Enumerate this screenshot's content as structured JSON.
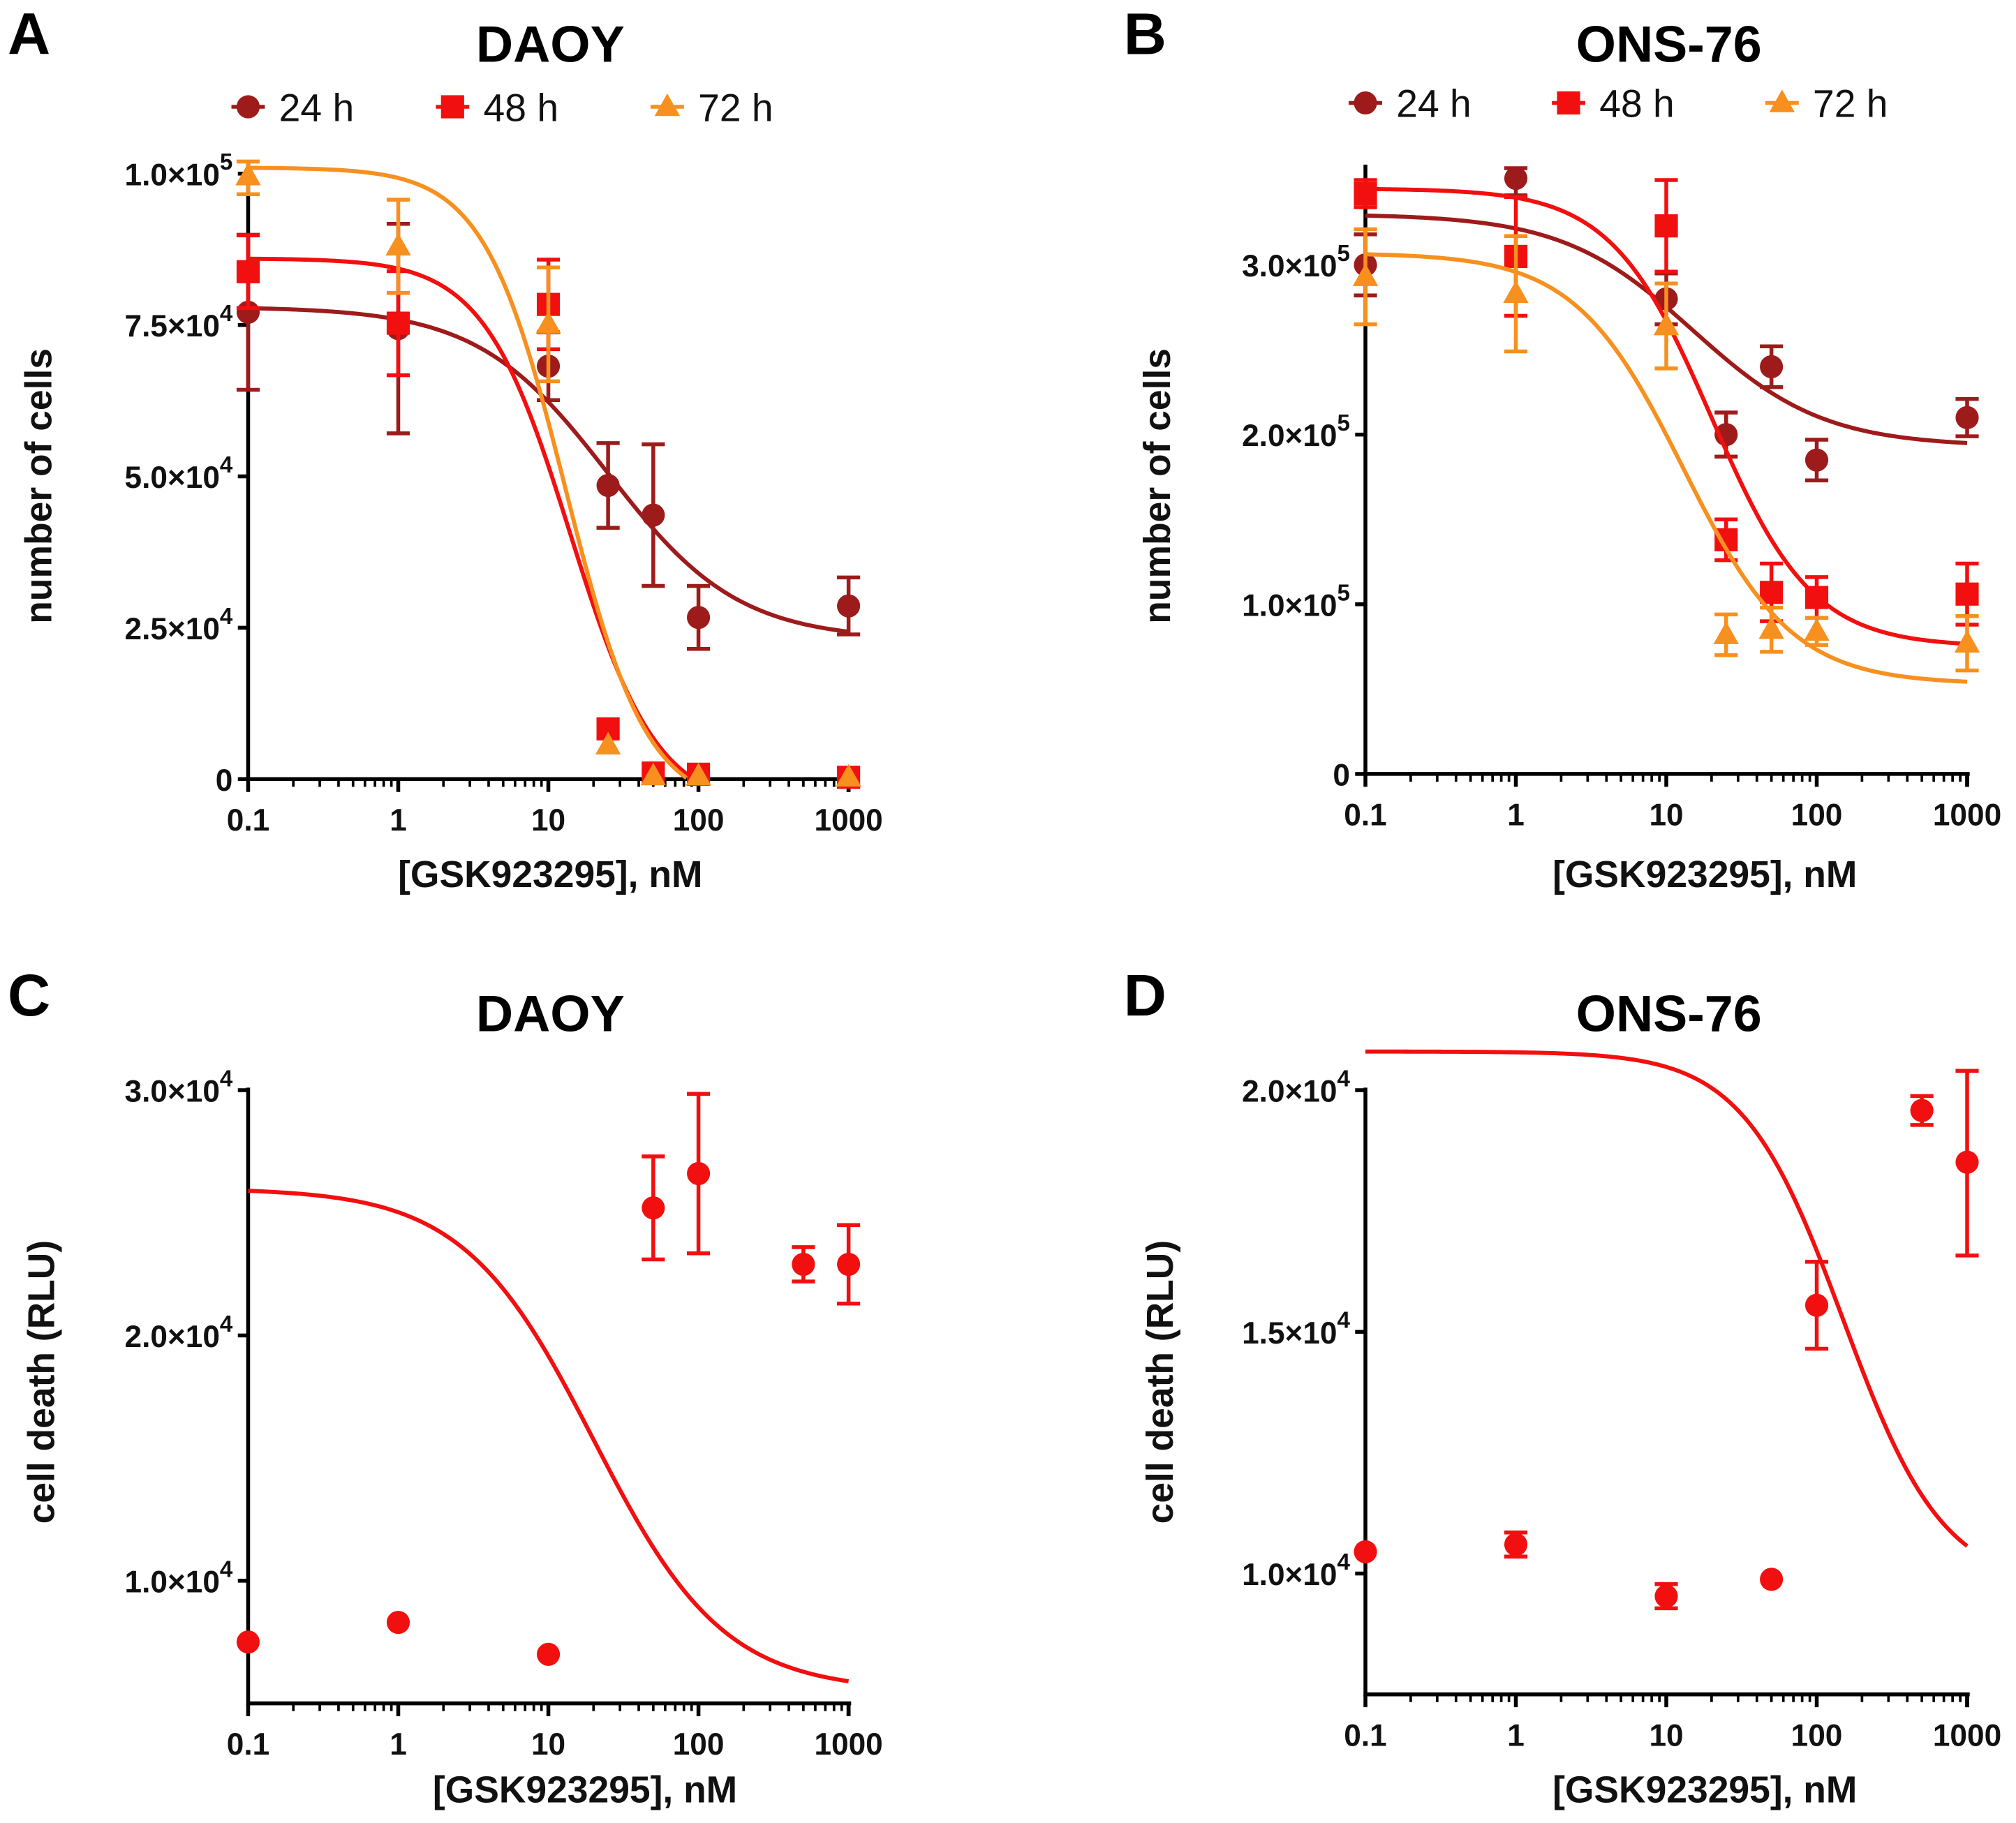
{
  "chart_data": [
    {
      "panel": "A",
      "type": "scatter",
      "title": "DAOY",
      "xlabel": "[GSK923295], nM",
      "ylabel": "number of cells",
      "xscale": "log",
      "xlim": [
        0.1,
        1000
      ],
      "ylim": [
        0,
        100000
      ],
      "x_ticks": [
        {
          "value": 0.1,
          "label": "0.1"
        },
        {
          "value": 1,
          "label": "1"
        },
        {
          "value": 10,
          "label": "10"
        },
        {
          "value": 100,
          "label": "100"
        },
        {
          "value": 1000,
          "label": "1000"
        }
      ],
      "y_ticks": [
        {
          "value": 0,
          "base": "0",
          "exp": ""
        },
        {
          "value": 25000,
          "base": "2.5×10",
          "exp": "4"
        },
        {
          "value": 50000,
          "base": "5.0×10",
          "exp": "4"
        },
        {
          "value": 75000,
          "base": "7.5×10",
          "exp": "4"
        },
        {
          "value": 100000,
          "base": "1.0×10",
          "exp": "5"
        }
      ],
      "legend_position": "top",
      "series": [
        {
          "name": "24 h",
          "marker": "circle",
          "color": "#9e1b1b",
          "x": [
            0.1,
            1,
            10,
            25,
            50,
            100,
            1000
          ],
          "y": [
            77100,
            74400,
            68200,
            48500,
            43600,
            26700,
            28600
          ],
          "err": [
            12800,
            17300,
            5600,
            7000,
            11700,
            5200,
            4700
          ],
          "fit": {
            "bottom": 23000,
            "top": 78000,
            "ec50": 25,
            "hill": 1.0
          }
        },
        {
          "name": "48 h",
          "marker": "square",
          "color": "#f20f0f",
          "x": [
            0.1,
            1,
            10,
            25,
            50,
            100,
            1000
          ],
          "y": [
            83800,
            75300,
            78400,
            8300,
            1000,
            800,
            300
          ],
          "err": [
            6000,
            8600,
            7400,
            0,
            0,
            0,
            0
          ],
          "fit": {
            "bottom": -5000,
            "top": 86000,
            "ec50": 14,
            "hill": 1.5
          }
        },
        {
          "name": "72 h",
          "marker": "triangle",
          "color": "#f7901e",
          "x": [
            0.1,
            1,
            10,
            25,
            50,
            100,
            1000
          ],
          "y": [
            99600,
            88000,
            75100,
            5600,
            500,
            500,
            300
          ],
          "err": [
            3000,
            7700,
            9400,
            0,
            0,
            0,
            0
          ],
          "fit": {
            "bottom": -5000,
            "top": 101000,
            "ec50": 13,
            "hill": 1.6
          }
        }
      ]
    },
    {
      "panel": "B",
      "type": "scatter",
      "title": "ONS-76",
      "xlabel": "[GSK923295], nM",
      "ylabel": "number of cells",
      "xscale": "log",
      "xlim": [
        0.1,
        1000
      ],
      "ylim": [
        0,
        350000
      ],
      "x_ticks": [
        {
          "value": 0.1,
          "label": "0.1"
        },
        {
          "value": 1,
          "label": "1"
        },
        {
          "value": 10,
          "label": "10"
        },
        {
          "value": 100,
          "label": "100"
        },
        {
          "value": 1000,
          "label": "1000"
        }
      ],
      "y_ticks": [
        {
          "value": 0,
          "base": "0",
          "exp": ""
        },
        {
          "value": 100000,
          "base": "1.0×10",
          "exp": "5"
        },
        {
          "value": 200000,
          "base": "2.0×10",
          "exp": "5"
        },
        {
          "value": 300000,
          "base": "3.0×10",
          "exp": "5"
        }
      ],
      "legend_position": "top",
      "series": [
        {
          "name": "24 h",
          "marker": "circle",
          "color": "#9e1b1b",
          "x": [
            0.1,
            1,
            10,
            25,
            50,
            100,
            1000
          ],
          "y": [
            300000,
            351000,
            280000,
            200000,
            240000,
            185000,
            210000
          ],
          "err": [
            18000,
            10000,
            15000,
            13000,
            12000,
            12000,
            11000
          ],
          "fit": {
            "bottom": 193000,
            "top": 330000,
            "ec50": 15,
            "hill": 1.0
          }
        },
        {
          "name": "48 h",
          "marker": "square",
          "color": "#f20f0f",
          "x": [
            0.1,
            1,
            10,
            25,
            50,
            100,
            1000
          ],
          "y": [
            342000,
            305000,
            323000,
            138000,
            107000,
            104000,
            106000
          ],
          "err": [
            8000,
            35000,
            27000,
            12000,
            17000,
            12000,
            18000
          ],
          "fit": {
            "bottom": 75000,
            "top": 345000,
            "ec50": 20,
            "hill": 1.3
          }
        },
        {
          "name": "72 h",
          "marker": "triangle",
          "color": "#f7901e",
          "x": [
            0.1,
            1,
            10,
            25,
            50,
            100,
            1000
          ],
          "y": [
            293000,
            283000,
            264000,
            82000,
            85000,
            84000,
            77000
          ],
          "err": [
            28000,
            34000,
            25000,
            12000,
            13000,
            8000,
            16000
          ],
          "fit": {
            "bottom": 53000,
            "top": 307000,
            "ec50": 13,
            "hill": 1.2
          }
        }
      ]
    },
    {
      "panel": "C",
      "type": "scatter",
      "title": "DAOY",
      "xlabel": "[GSK923295], nM",
      "ylabel": "cell death (RLU)",
      "xscale": "log",
      "xlim": [
        0.1,
        1000
      ],
      "ylim": [
        5000,
        30000
      ],
      "x_ticks": [
        {
          "value": 0.1,
          "label": "0.1"
        },
        {
          "value": 1,
          "label": "1"
        },
        {
          "value": 10,
          "label": "10"
        },
        {
          "value": 100,
          "label": "100"
        },
        {
          "value": 1000,
          "label": "1000"
        }
      ],
      "y_ticks": [
        {
          "value": 10000,
          "base": "1.0×10",
          "exp": "4"
        },
        {
          "value": 20000,
          "base": "2.0×10",
          "exp": "4"
        },
        {
          "value": 30000,
          "base": "3.0×10",
          "exp": "4"
        }
      ],
      "series": [
        {
          "name": "cell death",
          "marker": "circle",
          "color": "#f20f0f",
          "x": [
            0.1,
            1,
            10,
            50,
            100,
            500,
            1000
          ],
          "y": [
            7500,
            8300,
            7000,
            25200,
            26600,
            22900,
            22900
          ],
          "err": [
            0,
            0,
            0,
            2100,
            3250,
            700,
            1600
          ],
          "fit": {
            "bottom": 5500,
            "top": 26000,
            "ec50": 20,
            "hill": 1.0
          }
        }
      ]
    },
    {
      "panel": "D",
      "type": "scatter",
      "title": "ONS-76",
      "xlabel": "[GSK923295], nM",
      "ylabel": "cell death (RLU)",
      "xscale": "log",
      "xlim": [
        0.1,
        1000
      ],
      "ylim": [
        7500,
        20000
      ],
      "x_ticks": [
        {
          "value": 0.1,
          "label": "0.1"
        },
        {
          "value": 1,
          "label": "1"
        },
        {
          "value": 10,
          "label": "10"
        },
        {
          "value": 100,
          "label": "100"
        },
        {
          "value": 1000,
          "label": "1000"
        }
      ],
      "y_ticks": [
        {
          "value": 10000,
          "base": "1.0×10",
          "exp": "4"
        },
        {
          "value": 15000,
          "base": "1.5×10",
          "exp": "4"
        },
        {
          "value": 20000,
          "base": "2.0×10",
          "exp": "4"
        }
      ],
      "series": [
        {
          "name": "cell death",
          "marker": "circle",
          "color": "#f20f0f",
          "x": [
            0.1,
            1,
            10,
            50,
            100,
            500,
            1000
          ],
          "y": [
            10450,
            10600,
            9530,
            9880,
            15550,
            19580,
            18510
          ],
          "err": [
            0,
            250,
            250,
            0,
            900,
            300,
            1930
          ],
          "fit": {
            "bottom": 9700,
            "top": 20800,
            "ec50": 150,
            "hill": 1.3
          }
        }
      ]
    }
  ]
}
